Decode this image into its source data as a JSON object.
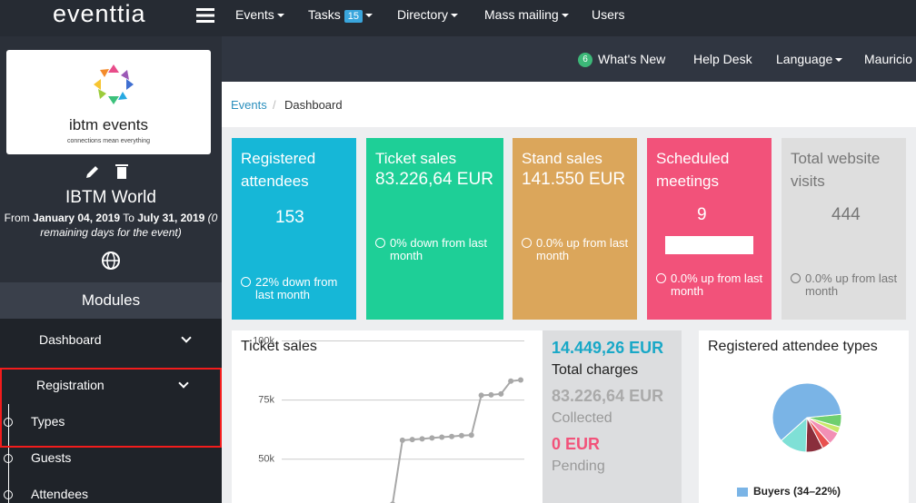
{
  "topbar": {
    "logo": "eventtia",
    "nav": [
      "Events",
      "Tasks",
      "Directory",
      "Mass mailing",
      "Users"
    ],
    "tasks_badge": "15"
  },
  "subbar": {
    "whats_new_badge": "6",
    "links": [
      "What's New",
      "Help Desk",
      "Language",
      "Mauricio"
    ]
  },
  "sidebar": {
    "event_logo": "ibtm",
    "event_logo_suffix": "events",
    "event_logo_tagline": "connections mean everything",
    "event_name": "IBTM World",
    "from_label": "From",
    "start": "January 04, 2019",
    "to_label": "To",
    "end": "July 31, 2019",
    "remaining": "(0 remaining days for the event)",
    "modules": "Modules",
    "menu": [
      "Dashboard",
      "Registration",
      "Types",
      "Guests",
      "Attendees"
    ]
  },
  "breadcrumb": [
    "Events",
    "Dashboard"
  ],
  "cards": [
    {
      "title": "Registered attendees",
      "value": "153",
      "change": "22% down from last month"
    },
    {
      "title": "Ticket sales",
      "value": "83.226,64 EUR",
      "change": "0% down from last month"
    },
    {
      "title": "Stand sales",
      "value": "141.550 EUR",
      "change": "0.0% up from last month"
    },
    {
      "title": "Scheduled meetings",
      "value": "9",
      "change": "0.0% up from last month"
    },
    {
      "title": "Total website visits",
      "value": "444",
      "change": "0.0% up from last month"
    }
  ],
  "chart_data": [
    {
      "type": "line",
      "title": "Ticket sales",
      "categories": [
        null,
        null,
        null,
        null,
        null,
        null,
        null,
        null,
        null,
        null,
        null,
        null,
        null,
        null
      ],
      "values": [
        31000,
        58000,
        58300,
        58600,
        59000,
        59300,
        59600,
        60000,
        60200,
        77000,
        77200,
        77600,
        83000,
        83500
      ],
      "color": "#a8a8a8",
      "ylim": [
        31500,
        104400
      ],
      "yticks": [
        {
          "value": 100000,
          "label": "100k"
        },
        {
          "value": 75000,
          "label": "75k"
        },
        {
          "value": 50000,
          "label": "50k"
        }
      ],
      "grid": true
    },
    {
      "type": "pie",
      "title": "Registered attendee types",
      "values": [
        6,
        3,
        6,
        4,
        8,
        13,
        60
      ],
      "colors": [
        "#6fcf6f",
        "#c9e86a",
        "#f28fb5",
        "#e8504f",
        "#8a2e3c",
        "#7fe0d6",
        "#7ab4e6"
      ],
      "legend": [
        "Buyers (34–22%)"
      ]
    }
  ],
  "summary": [
    {
      "value": "14.449,26 EUR",
      "label": "Total charges"
    },
    {
      "value": "83.226,64 EUR",
      "label": "Collected"
    },
    {
      "value": "0 EUR",
      "label": "Pending"
    }
  ]
}
